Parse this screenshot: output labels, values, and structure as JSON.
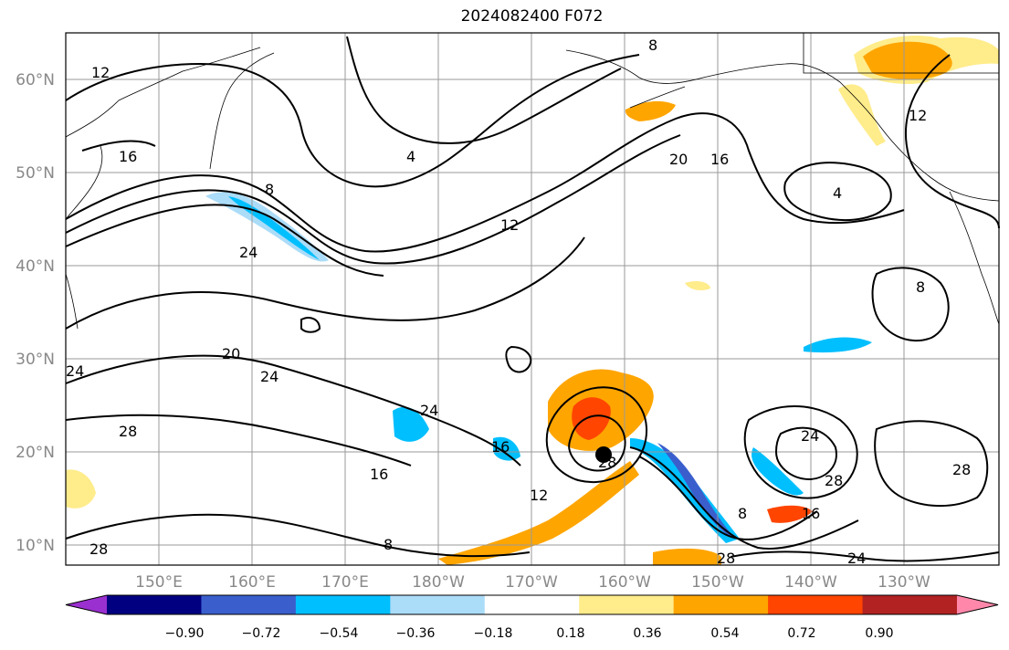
{
  "title": "2024082400 F072",
  "map": {
    "lat_labels": [
      "60°N",
      "50°N",
      "40°N",
      "30°N",
      "20°N",
      "10°N"
    ],
    "lon_labels": [
      "150°E",
      "160°E",
      "170°E",
      "180°W",
      "170°W",
      "160°W",
      "150°W",
      "140°W",
      "130°W"
    ],
    "contour_labels": [
      "16",
      "8",
      "4",
      "24",
      "8",
      "12",
      "20",
      "16",
      "4",
      "12",
      "8",
      "20",
      "24",
      "24",
      "28",
      "24",
      "16",
      "16",
      "12",
      "28",
      "24",
      "28",
      "8",
      "16",
      "28",
      "28",
      "24",
      "28",
      "8",
      "12"
    ],
    "storm_marker": "black-dot"
  },
  "colorbar": {
    "ticks": [
      "−0.90",
      "−0.72",
      "−0.54",
      "−0.36",
      "−0.18",
      "0.18",
      "0.36",
      "0.54",
      "0.72",
      "0.90"
    ],
    "colors": [
      "#9b30d0",
      "#000080",
      "#3a5fcd",
      "#00bfff",
      "#abdcf8",
      "#ffffff",
      "#ffec8b",
      "#ffa500",
      "#ff4500",
      "#b22222",
      "#ff88aa"
    ]
  }
}
